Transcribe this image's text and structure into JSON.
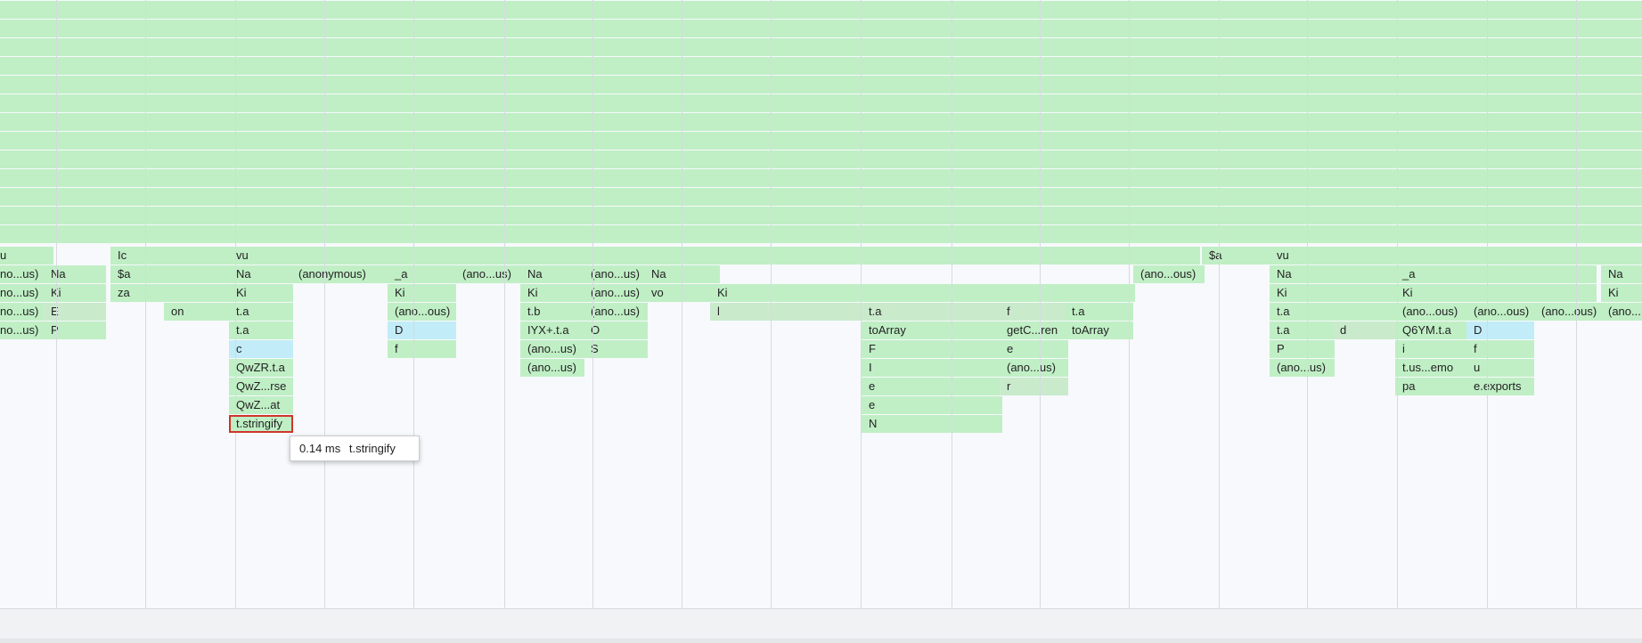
{
  "colors": {
    "frame_green": "#c0efc5",
    "frame_green_dim": "#c9ebcc",
    "frame_cyan": "#c2ecf8",
    "selected_outline": "#d0342c",
    "background": "#f7f9fc"
  },
  "frames": [
    {
      "text": "u",
      "c": "green"
    },
    {
      "text": "Ic",
      "c": "green"
    },
    {
      "text": "vu",
      "c": "green"
    },
    {
      "text": "$a",
      "c": "green"
    },
    {
      "text": "vu",
      "c": "green"
    },
    {
      "text": "no...us)",
      "c": "green"
    },
    {
      "text": "Na",
      "c": "green"
    },
    {
      "text": "$a",
      "c": "green"
    },
    {
      "text": "Na",
      "c": "green"
    },
    {
      "text": "(anonymous)",
      "c": "green"
    },
    {
      "text": "_a",
      "c": "green"
    },
    {
      "text": "(ano...us)",
      "c": "green"
    },
    {
      "text": "Na",
      "c": "green"
    },
    {
      "text": "(ano...us)",
      "c": "green"
    },
    {
      "text": "Na",
      "c": "green"
    },
    {
      "text": "(ano...ous)",
      "c": "green"
    },
    {
      "text": "Na",
      "c": "green"
    },
    {
      "text": "_a",
      "c": "green"
    },
    {
      "text": "Na",
      "c": "green"
    },
    {
      "text": "no...us)",
      "c": "green"
    },
    {
      "text": "Ki",
      "c": "green"
    },
    {
      "text": "za",
      "c": "green"
    },
    {
      "text": "Ki",
      "c": "green"
    },
    {
      "text": "Ki",
      "c": "green"
    },
    {
      "text": "Ki",
      "c": "green"
    },
    {
      "text": "(ano...us)",
      "c": "green"
    },
    {
      "text": "vo",
      "c": "green"
    },
    {
      "text": "Ki",
      "c": "green"
    },
    {
      "text": "Ki",
      "c": "green"
    },
    {
      "text": "Ki",
      "c": "green"
    },
    {
      "text": "Ki",
      "c": "green"
    },
    {
      "text": "no...us)",
      "c": "green"
    },
    {
      "text": "E",
      "c": "green2"
    },
    {
      "text": "on",
      "c": "green"
    },
    {
      "text": "t.a",
      "c": "green"
    },
    {
      "text": "(ano...ous)",
      "c": "green"
    },
    {
      "text": "t.b",
      "c": "green"
    },
    {
      "text": "(ano...us)",
      "c": "green"
    },
    {
      "text": "l",
      "c": "green2"
    },
    {
      "text": "t.a",
      "c": "green2"
    },
    {
      "text": "f",
      "c": "green2"
    },
    {
      "text": "t.a",
      "c": "green"
    },
    {
      "text": "t.a",
      "c": "green"
    },
    {
      "text": "(ano...ous)",
      "c": "green"
    },
    {
      "text": "(ano...ous)",
      "c": "green"
    },
    {
      "text": "(ano...ous)",
      "c": "green"
    },
    {
      "text": "(ano...",
      "c": "green"
    },
    {
      "text": "no...us)",
      "c": "green"
    },
    {
      "text": "P",
      "c": "green"
    },
    {
      "text": "t.a",
      "c": "green"
    },
    {
      "text": "D",
      "c": "cyan"
    },
    {
      "text": "IYX+.t.a",
      "c": "green"
    },
    {
      "text": "O",
      "c": "green"
    },
    {
      "text": "toArray",
      "c": "green"
    },
    {
      "text": "getC...ren",
      "c": "green"
    },
    {
      "text": "toArray",
      "c": "green"
    },
    {
      "text": "t.a",
      "c": "green"
    },
    {
      "text": "d",
      "c": "green2"
    },
    {
      "text": "Q6YM.t.a",
      "c": "green"
    },
    {
      "text": "D",
      "c": "cyan"
    },
    {
      "text": "c",
      "c": "cyan"
    },
    {
      "text": "f",
      "c": "green"
    },
    {
      "text": "(ano...us)",
      "c": "green"
    },
    {
      "text": "S",
      "c": "green"
    },
    {
      "text": "F",
      "c": "green"
    },
    {
      "text": "e",
      "c": "green"
    },
    {
      "text": "P",
      "c": "green"
    },
    {
      "text": "i",
      "c": "green"
    },
    {
      "text": "f",
      "c": "green"
    },
    {
      "text": "QwZR.t.a",
      "c": "green"
    },
    {
      "text": "(ano...us)",
      "c": "green"
    },
    {
      "text": "I",
      "c": "green"
    },
    {
      "text": "(ano...us)",
      "c": "green"
    },
    {
      "text": "(ano...us)",
      "c": "green"
    },
    {
      "text": "t.us...emo",
      "c": "green"
    },
    {
      "text": "u",
      "c": "green"
    },
    {
      "text": "QwZ...rse",
      "c": "green"
    },
    {
      "text": "e",
      "c": "green"
    },
    {
      "text": "r",
      "c": "green2"
    },
    {
      "text": "pa",
      "c": "green"
    },
    {
      "text": "e.exports",
      "c": "green"
    },
    {
      "text": "QwZ...at",
      "c": "green"
    },
    {
      "text": "e",
      "c": "green"
    },
    {
      "text": "t.stringify",
      "c": "green",
      "selected": true
    },
    {
      "text": "N",
      "c": "green"
    }
  ],
  "tooltip": {
    "time": "0.14 ms",
    "name": "t.stringify"
  }
}
